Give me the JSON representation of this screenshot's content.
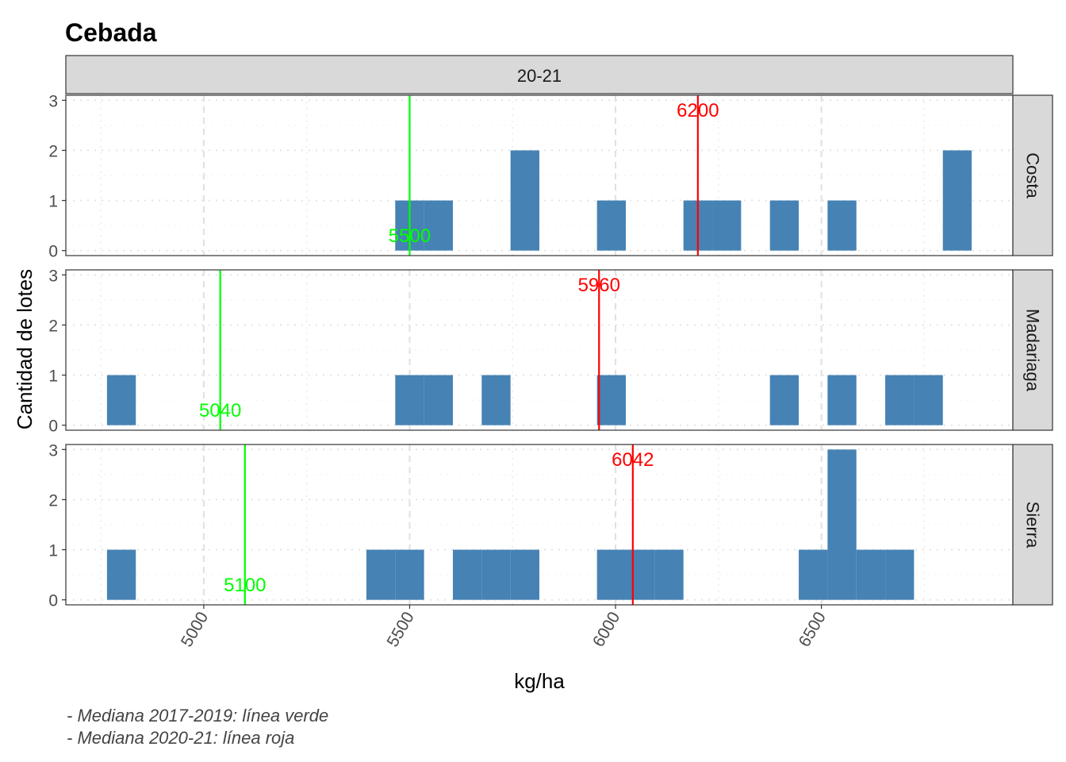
{
  "chart_data": {
    "type": "bar",
    "title": "Cebada",
    "column_strip": "20-21",
    "xlabel": "kg/ha",
    "ylabel": "Cantidad de lotes",
    "xlim": [
      4665,
      6965
    ],
    "ylim": [
      -0.1,
      3.1
    ],
    "x_ticks": [
      5000,
      5500,
      6000,
      6500
    ],
    "y_ticks": [
      0,
      1,
      2,
      3
    ],
    "bin_width": 70,
    "bar_color": "#4682B4",
    "green_color": "#00FF00",
    "red_color": "#FF0000",
    "grid": true,
    "captions": [
      "- Mediana 2017-2019: línea verde",
      "- Mediana 2020-21: línea roja"
    ],
    "panels": [
      {
        "name": "Costa",
        "green_median": 5500,
        "green_label": "5500",
        "red_median": 6200,
        "red_label": "6200",
        "bins": [
          {
            "x": 5500,
            "count": 1
          },
          {
            "x": 5570,
            "count": 1
          },
          {
            "x": 5780,
            "count": 2
          },
          {
            "x": 5990,
            "count": 1
          },
          {
            "x": 6200,
            "count": 1
          },
          {
            "x": 6270,
            "count": 1
          },
          {
            "x": 6410,
            "count": 1
          },
          {
            "x": 6550,
            "count": 1
          },
          {
            "x": 6830,
            "count": 2
          }
        ]
      },
      {
        "name": "Madariaga",
        "green_median": 5040,
        "green_label": "5040",
        "red_median": 5960,
        "red_label": "5960",
        "bins": [
          {
            "x": 4800,
            "count": 1
          },
          {
            "x": 5500,
            "count": 1
          },
          {
            "x": 5570,
            "count": 1
          },
          {
            "x": 5710,
            "count": 1
          },
          {
            "x": 5990,
            "count": 1
          },
          {
            "x": 6410,
            "count": 1
          },
          {
            "x": 6550,
            "count": 1
          },
          {
            "x": 6690,
            "count": 1
          },
          {
            "x": 6760,
            "count": 1
          }
        ]
      },
      {
        "name": "Sierra",
        "green_median": 5100,
        "green_label": "5100",
        "red_median": 6042,
        "red_label": "6042",
        "bins": [
          {
            "x": 4800,
            "count": 1
          },
          {
            "x": 5430,
            "count": 1
          },
          {
            "x": 5500,
            "count": 1
          },
          {
            "x": 5640,
            "count": 1
          },
          {
            "x": 5710,
            "count": 1
          },
          {
            "x": 5780,
            "count": 1
          },
          {
            "x": 5990,
            "count": 1
          },
          {
            "x": 6060,
            "count": 1
          },
          {
            "x": 6130,
            "count": 1
          },
          {
            "x": 6480,
            "count": 1
          },
          {
            "x": 6550,
            "count": 3
          },
          {
            "x": 6620,
            "count": 1
          },
          {
            "x": 6690,
            "count": 1
          }
        ]
      }
    ]
  }
}
